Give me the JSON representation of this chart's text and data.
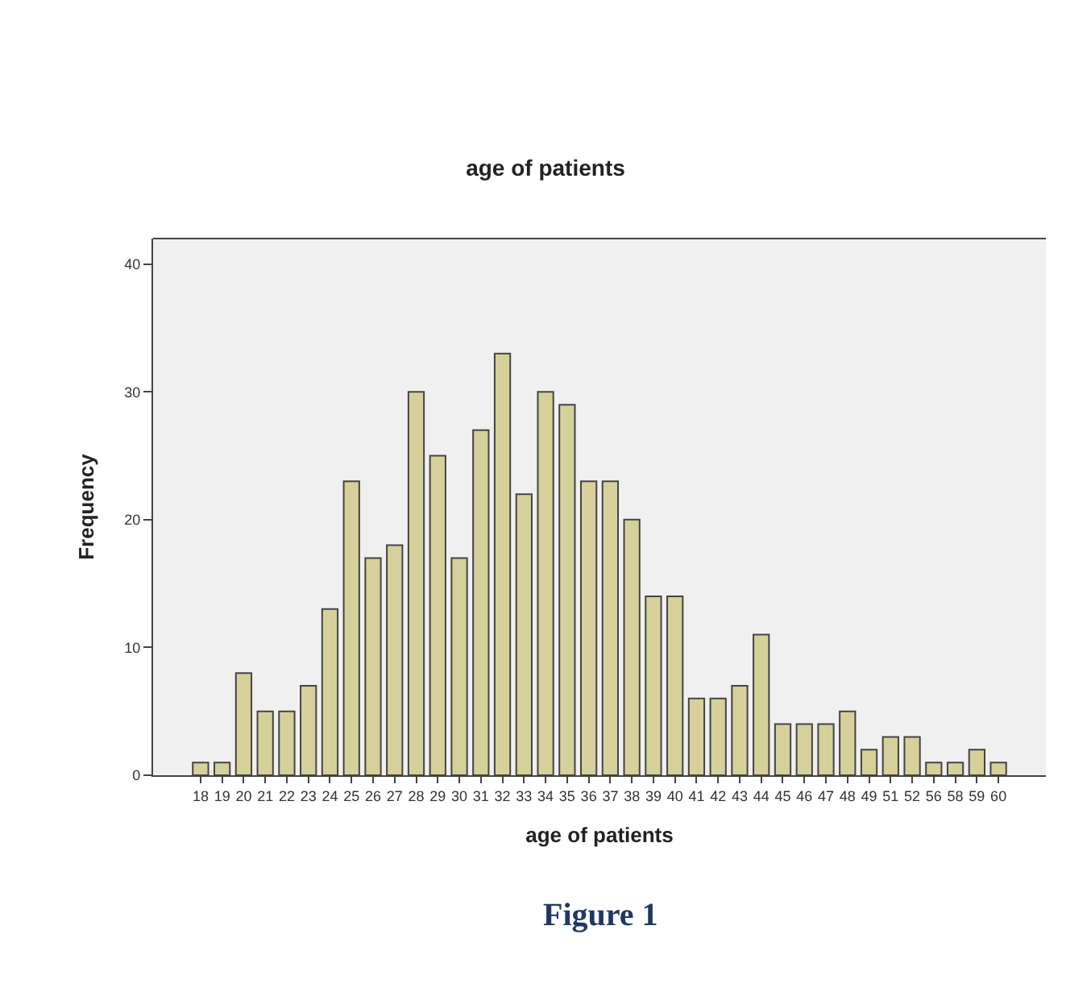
{
  "chart_data": {
    "type": "bar",
    "title": "age of patients",
    "xlabel": "age of patients",
    "ylabel": "Frequency",
    "categories": [
      "18",
      "19",
      "20",
      "21",
      "22",
      "23",
      "24",
      "25",
      "26",
      "27",
      "28",
      "29",
      "30",
      "31",
      "32",
      "33",
      "34",
      "35",
      "36",
      "37",
      "38",
      "39",
      "40",
      "41",
      "42",
      "43",
      "44",
      "45",
      "46",
      "47",
      "48",
      "49",
      "51",
      "52",
      "56",
      "58",
      "59",
      "60"
    ],
    "values": [
      1,
      1,
      8,
      5,
      5,
      7,
      13,
      23,
      17,
      18,
      30,
      25,
      17,
      27,
      33,
      22,
      30,
      29,
      23,
      23,
      20,
      14,
      14,
      6,
      6,
      7,
      11,
      4,
      4,
      4,
      5,
      2,
      3,
      3,
      1,
      1,
      2,
      1
    ],
    "color": "#d6d19a",
    "ylim": [
      0,
      42
    ],
    "yticks": [
      0,
      10,
      20,
      30,
      40
    ],
    "grid": false,
    "annotations": [
      "Figure 1"
    ]
  }
}
